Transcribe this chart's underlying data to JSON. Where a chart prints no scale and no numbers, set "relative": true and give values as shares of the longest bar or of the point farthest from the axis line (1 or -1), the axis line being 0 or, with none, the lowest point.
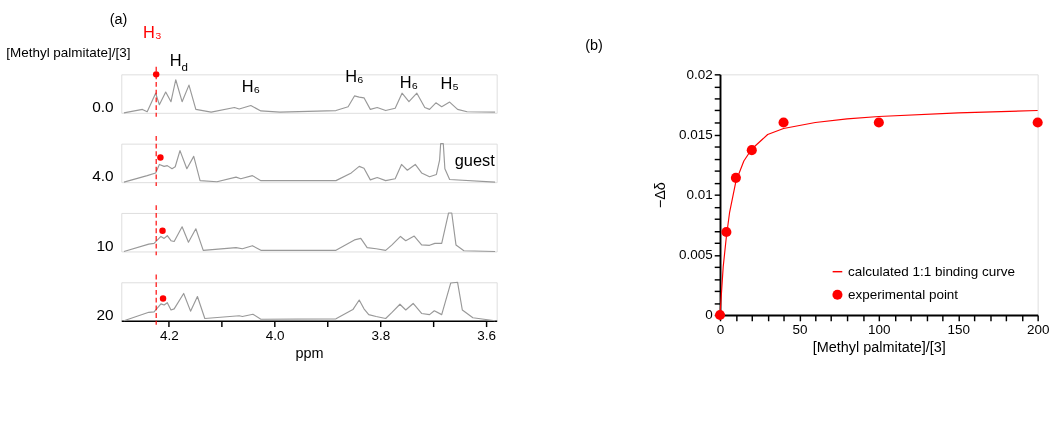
{
  "chart_data": [
    {
      "type": "line",
      "title": "(a)",
      "relative": true,
      "xlim": [
        4.29,
        3.58
      ],
      "tick_labels": false,
      "annotations": [
        "[Methyl palmitate]/[3]",
        {
          "text": "H$_{d}$",
          "x": 4.187,
          "y": 0.86
        },
        {
          "text": "H₆",
          "x": 4.045,
          "y": 0.19
        },
        {
          "text": "H₆",
          "x": 3.849,
          "y": 0.44
        },
        {
          "text": "H₆",
          "x": 3.746,
          "y": 0.29
        },
        {
          "text": "H₅",
          "x": 3.669,
          "y": 0.28
        }
      ],
      "ref_lines": [
        {
          "axis": "x",
          "value": 4.224,
          "label": "H₃",
          "color": "#ff0000",
          "line_style": "dashed"
        }
      ],
      "series": [
        {
          "name": "0.0",
          "color": "#999999",
          "x": [
            4.285,
            4.25,
            4.241,
            4.225,
            4.218,
            4.206,
            4.196,
            4.187,
            4.175,
            4.162,
            4.149,
            4.12,
            4.076,
            4.067,
            4.045,
            4.026,
            3.99,
            3.884,
            3.861,
            3.849,
            3.84,
            3.831,
            3.819,
            3.806,
            3.79,
            3.772,
            3.759,
            3.746,
            3.731,
            3.716,
            3.707,
            3.695,
            3.684,
            3.669,
            3.654,
            3.636,
            3.583
          ],
          "values": [
            0,
            0.09,
            0.03,
            0.51,
            0.21,
            0.54,
            0.29,
            0.86,
            0.29,
            0.72,
            0.09,
            0.02,
            0.14,
            0.1,
            0.19,
            0.05,
            0.02,
            0.06,
            0.16,
            0.44,
            0.41,
            0.39,
            0.09,
            0.14,
            0.06,
            0.12,
            0.51,
            0.29,
            0.51,
            0.14,
            0.09,
            0.26,
            0.16,
            0.28,
            0.09,
            0.03,
            0.02
          ]
        },
        {
          "type": "scatter",
          "color": "#ff0000",
          "marker": "circle",
          "x": [
            4.224
          ],
          "values": [
            1.0
          ]
        }
      ]
    },
    {
      "type": "line",
      "relative": true,
      "xlim": [
        4.29,
        3.58
      ],
      "tick_labels": false,
      "annotations": [
        "guest"
      ],
      "ref_lines": [
        {
          "axis": "x",
          "value": 4.224,
          "color": "#ff0000",
          "line_style": "dashed"
        }
      ],
      "series": [
        {
          "name": "4.0",
          "color": "#999999",
          "x": [
            4.285,
            4.241,
            4.225,
            4.218,
            4.209,
            4.203,
            4.194,
            4.188,
            4.179,
            4.166,
            4.153,
            4.141,
            4.109,
            4.073,
            4.064,
            4.042,
            4.026,
            3.884,
            3.855,
            3.84,
            3.831,
            3.819,
            3.806,
            3.79,
            3.772,
            3.76,
            3.749,
            3.734,
            3.722,
            3.707,
            3.694,
            3.688,
            3.686,
            3.681,
            3.678,
            3.669,
            3.583
          ],
          "values": [
            0,
            0.17,
            0.24,
            0.46,
            0.41,
            0.43,
            0.35,
            0.4,
            0.82,
            0.35,
            0.67,
            0.04,
            0.01,
            0.13,
            0.09,
            0.17,
            0.04,
            0.04,
            0.24,
            0.41,
            0.36,
            0.06,
            0.12,
            0.04,
            0.09,
            0.46,
            0.31,
            0.46,
            0.24,
            0.14,
            0.2,
            0.57,
            1.0,
            1.0,
            0.35,
            0.07,
            0
          ]
        },
        {
          "type": "scatter",
          "color": "#ff0000",
          "marker": "circle",
          "x": [
            4.216
          ],
          "values": [
            0.64
          ]
        }
      ]
    },
    {
      "type": "line",
      "relative": true,
      "xlim": [
        4.29,
        3.58
      ],
      "tick_labels": false,
      "ref_lines": [
        {
          "axis": "x",
          "value": 4.224,
          "color": "#ff0000",
          "line_style": "dashed"
        }
      ],
      "series": [
        {
          "name": "10",
          "color": "#999999",
          "x": [
            4.285,
            4.238,
            4.228,
            4.215,
            4.209,
            4.203,
            4.196,
            4.19,
            4.175,
            4.163,
            4.149,
            4.135,
            4.073,
            4.061,
            4.042,
            4.026,
            3.884,
            3.849,
            3.837,
            3.825,
            3.808,
            3.79,
            3.778,
            3.762,
            3.752,
            3.736,
            3.722,
            3.707,
            3.697,
            3.684,
            3.671,
            3.665,
            3.657,
            3.642,
            3.583
          ],
          "values": [
            0,
            0.19,
            0.21,
            0.39,
            0.34,
            0.41,
            0.28,
            0.26,
            0.64,
            0.24,
            0.59,
            0.03,
            0.1,
            0.07,
            0.15,
            0.03,
            0.03,
            0.3,
            0.34,
            0.1,
            0.07,
            0.03,
            0.17,
            0.39,
            0.28,
            0.4,
            0.17,
            0.16,
            0.21,
            0.21,
            1.0,
            1.0,
            0.17,
            0.02,
            0
          ]
        },
        {
          "type": "scatter",
          "color": "#ff0000",
          "marker": "circle",
          "x": [
            4.212
          ],
          "values": [
            0.54
          ]
        }
      ]
    },
    {
      "type": "line",
      "relative": true,
      "xlim": [
        4.29,
        3.58
      ],
      "tick_labels": "x",
      "xlabel": "ppm",
      "xticks": [
        {
          "value": 4.2,
          "label": "4.2"
        },
        {
          "value": 4.1,
          "label": null
        },
        {
          "value": 4.0,
          "label": "4.0"
        },
        {
          "value": 3.9,
          "label": null
        },
        {
          "value": 3.8,
          "label": "3.8"
        },
        {
          "value": 3.7,
          "label": null
        },
        {
          "value": 3.6,
          "label": "3.6"
        }
      ],
      "ref_lines": [
        {
          "axis": "x",
          "value": 4.224,
          "color": "#ff0000",
          "line_style": "dashed"
        }
      ],
      "series": [
        {
          "name": "20",
          "color": "#999999",
          "x": [
            4.285,
            4.238,
            4.228,
            4.215,
            4.209,
            4.203,
            4.196,
            4.19,
            4.172,
            4.159,
            4.146,
            4.132,
            4.067,
            4.061,
            4.041,
            4.026,
            3.884,
            3.852,
            3.84,
            3.831,
            3.822,
            3.808,
            3.79,
            3.778,
            3.763,
            3.752,
            3.738,
            3.722,
            3.707,
            3.698,
            3.684,
            3.667,
            3.654,
            3.645,
            3.625,
            3.583
          ],
          "values": [
            0,
            0.22,
            0.23,
            0.44,
            0.41,
            0.47,
            0.28,
            0.31,
            0.71,
            0.25,
            0.63,
            0.06,
            0.13,
            0.11,
            0.17,
            0.04,
            0.05,
            0.29,
            0.54,
            0.31,
            0.16,
            0.11,
            0.06,
            0.22,
            0.43,
            0.28,
            0.45,
            0.19,
            0.16,
            0.26,
            0.16,
            0.98,
            1.0,
            0.28,
            0.08,
            0
          ]
        },
        {
          "type": "scatter",
          "color": "#ff0000",
          "marker": "circle",
          "x": [
            4.211
          ],
          "values": [
            0.58
          ]
        }
      ]
    },
    {
      "type": "scatter",
      "title": "(b)",
      "xlabel": "[Methyl palmitate]/[3]",
      "ylabel": "−Δδ",
      "xlim": [
        0,
        200
      ],
      "ylim": [
        0,
        0.02
      ],
      "legend": "bottom right",
      "xticks": [
        0,
        {
          "value": 10,
          "label": null
        },
        {
          "value": 20,
          "label": null
        },
        {
          "value": 30,
          "label": null
        },
        {
          "value": 40,
          "label": null
        },
        50,
        {
          "value": 60,
          "label": null
        },
        {
          "value": 70,
          "label": null
        },
        {
          "value": 80,
          "label": null
        },
        {
          "value": 90,
          "label": null
        },
        100,
        {
          "value": 110,
          "label": null
        },
        {
          "value": 120,
          "label": null
        },
        {
          "value": 130,
          "label": null
        },
        {
          "value": 140,
          "label": null
        },
        150,
        {
          "value": 160,
          "label": null
        },
        {
          "value": 170,
          "label": null
        },
        {
          "value": 180,
          "label": null
        },
        {
          "value": 190,
          "label": null
        },
        200
      ],
      "yticks": [
        0,
        {
          "value": 0.001,
          "label": null
        },
        {
          "value": 0.002,
          "label": null
        },
        {
          "value": 0.003,
          "label": null
        },
        {
          "value": 0.004,
          "label": null
        },
        0.005,
        {
          "value": 0.006,
          "label": null
        },
        {
          "value": 0.007,
          "label": null
        },
        {
          "value": 0.008,
          "label": null
        },
        {
          "value": 0.009,
          "label": null
        },
        0.01,
        {
          "value": 0.011,
          "label": null
        },
        {
          "value": 0.012,
          "label": null
        },
        {
          "value": 0.013,
          "label": null
        },
        {
          "value": 0.014,
          "label": null
        },
        0.015,
        {
          "value": 0.016,
          "label": null
        },
        {
          "value": 0.017,
          "label": null
        },
        {
          "value": 0.018,
          "label": null
        },
        {
          "value": 0.019,
          "label": null
        },
        0.02
      ],
      "series": [
        {
          "name": "calculated 1:1 binding curve",
          "type": "line",
          "color": "#ff0000",
          "x": [
            0,
            2,
            4,
            6,
            10,
            15,
            20,
            30,
            40,
            60,
            80,
            100,
            150,
            200
          ],
          "values": [
            0,
            0.004,
            0.0065,
            0.0085,
            0.0111,
            0.0128,
            0.0138,
            0.015,
            0.0155,
            0.016,
            0.0163,
            0.0165,
            0.0168,
            0.017
          ]
        },
        {
          "name": "experimental point",
          "color": "#ff0000",
          "marker": "circle",
          "x": [
            0,
            4,
            10,
            20,
            40,
            100,
            200
          ],
          "values": [
            0,
            0.0069,
            0.0114,
            0.0137,
            0.016,
            0.016,
            0.016
          ]
        }
      ]
    }
  ]
}
